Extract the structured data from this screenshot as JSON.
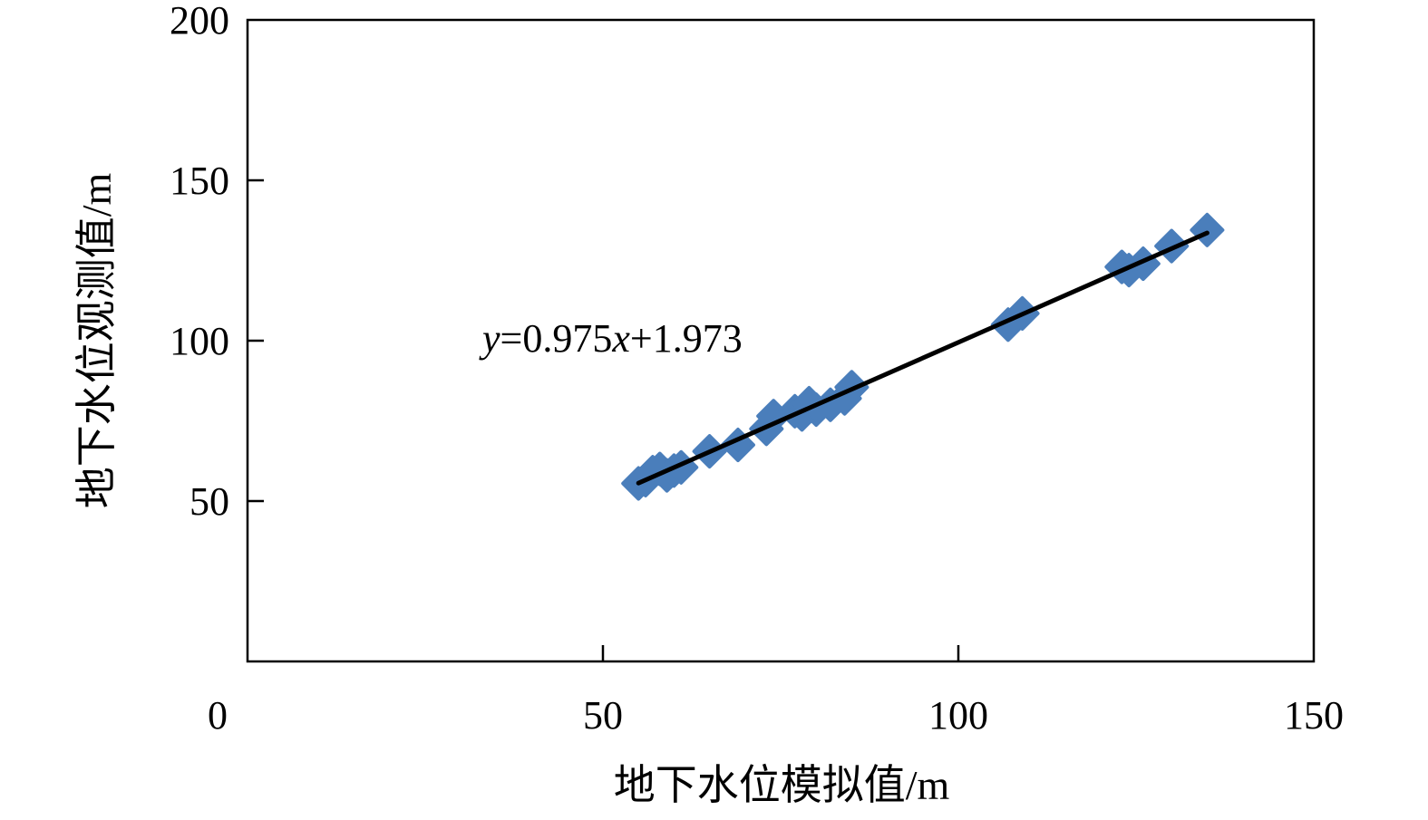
{
  "chart_data": {
    "type": "scatter",
    "title": "",
    "xlabel": "地下水位模拟值/m",
    "ylabel": "地下水位观测值/m",
    "xlim": [
      0,
      150
    ],
    "ylim": [
      0,
      200
    ],
    "x_ticks": [
      0,
      50,
      100,
      150
    ],
    "y_ticks": [
      50,
      100,
      150,
      200
    ],
    "x_tick_labels": [
      "0",
      "50",
      "100",
      "150"
    ],
    "y_tick_labels": [
      "50",
      "100",
      "150",
      "200"
    ],
    "grid": false,
    "marker": "diamond",
    "marker_color": "#4a7ebb",
    "line_color": "#000000",
    "series": [
      {
        "values": [
          {
            "x": 55.0,
            "y": 55.5
          },
          {
            "x": 56.0,
            "y": 56.5
          },
          {
            "x": 57.0,
            "y": 59.0
          },
          {
            "x": 58.0,
            "y": 60.0
          },
          {
            "x": 59.0,
            "y": 58.0
          },
          {
            "x": 60.0,
            "y": 59.5
          },
          {
            "x": 61.0,
            "y": 60.5
          },
          {
            "x": 65.0,
            "y": 65.5
          },
          {
            "x": 69.0,
            "y": 67.5
          },
          {
            "x": 73.0,
            "y": 72.5
          },
          {
            "x": 74.0,
            "y": 76.5
          },
          {
            "x": 77.0,
            "y": 78.0
          },
          {
            "x": 78.0,
            "y": 77.0
          },
          {
            "x": 79.0,
            "y": 80.5
          },
          {
            "x": 80.0,
            "y": 78.5
          },
          {
            "x": 82.0,
            "y": 80.0
          },
          {
            "x": 84.0,
            "y": 82.0
          },
          {
            "x": 85.0,
            "y": 85.5
          },
          {
            "x": 107.0,
            "y": 105.0
          },
          {
            "x": 109.0,
            "y": 108.5
          },
          {
            "x": 123.0,
            "y": 123.0
          },
          {
            "x": 124.0,
            "y": 122.0
          },
          {
            "x": 126.0,
            "y": 124.0
          },
          {
            "x": 130.0,
            "y": 129.5
          },
          {
            "x": 135.0,
            "y": 134.5
          }
        ]
      }
    ],
    "trendline": {
      "slope": 0.975,
      "intercept": 1.973,
      "x_start": 55,
      "x_end": 135
    },
    "equation_parts": [
      "y",
      "=0.975",
      "x",
      "+1.973"
    ]
  }
}
